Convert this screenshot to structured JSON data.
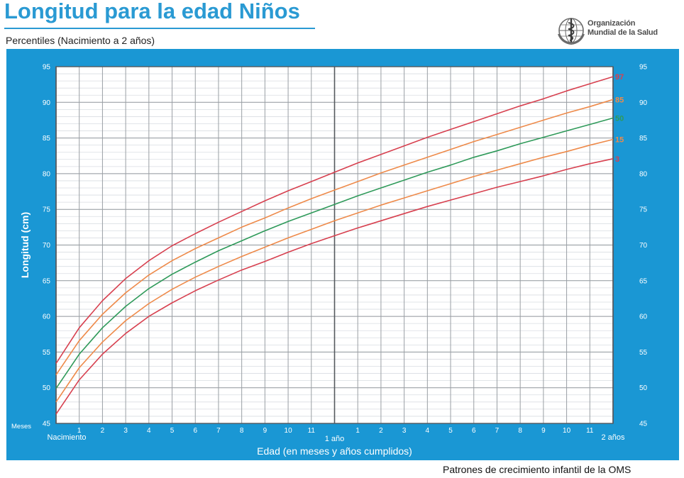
{
  "title": "Longitud para la edad Niños",
  "subtitle": "Percentiles (Nacimiento a 2 años)",
  "logo": {
    "line1": "Organización",
    "line2": "Mundial de la Salud",
    "icon": "who-emblem-icon"
  },
  "footer": "Patrones de crecimiento infantil de la OMS",
  "colors": {
    "panel": "#1a97d4",
    "p97": "#d7404f",
    "p85": "#ee8a4a",
    "p50": "#2f9a5a",
    "p15": "#ee8a4a",
    "p3": "#d7404f"
  },
  "chart_data": {
    "type": "line",
    "ylabel": "Longitud (cm)",
    "xlabel": "Edad (en meses y años cumplidos)",
    "x_unit_label": "Meses",
    "xlim": [
      0,
      24
    ],
    "ylim": [
      45,
      95
    ],
    "y_ticks": [
      45,
      50,
      55,
      60,
      65,
      70,
      75,
      80,
      85,
      90,
      95
    ],
    "x_ticks": [
      {
        "x": 0,
        "label": ""
      },
      {
        "x": 1,
        "label": "1"
      },
      {
        "x": 2,
        "label": "2"
      },
      {
        "x": 3,
        "label": "3"
      },
      {
        "x": 4,
        "label": "4"
      },
      {
        "x": 5,
        "label": "5"
      },
      {
        "x": 6,
        "label": "6"
      },
      {
        "x": 7,
        "label": "7"
      },
      {
        "x": 8,
        "label": "8"
      },
      {
        "x": 9,
        "label": "9"
      },
      {
        "x": 10,
        "label": "10"
      },
      {
        "x": 11,
        "label": "11"
      },
      {
        "x": 12,
        "label": ""
      },
      {
        "x": 13,
        "label": "1"
      },
      {
        "x": 14,
        "label": "2"
      },
      {
        "x": 15,
        "label": "3"
      },
      {
        "x": 16,
        "label": "4"
      },
      {
        "x": 17,
        "label": "5"
      },
      {
        "x": 18,
        "label": "6"
      },
      {
        "x": 19,
        "label": "7"
      },
      {
        "x": 20,
        "label": "8"
      },
      {
        "x": 21,
        "label": "9"
      },
      {
        "x": 22,
        "label": "10"
      },
      {
        "x": 23,
        "label": "11"
      },
      {
        "x": 24,
        "label": ""
      }
    ],
    "milestones": [
      {
        "x": 0,
        "label": "Nacimiento"
      },
      {
        "x": 12,
        "label": "1 año"
      },
      {
        "x": 24,
        "label": "2 años"
      }
    ],
    "grid": true,
    "x": [
      0,
      1,
      2,
      3,
      4,
      5,
      6,
      7,
      8,
      9,
      10,
      11,
      12,
      13,
      14,
      15,
      16,
      17,
      18,
      19,
      20,
      21,
      22,
      23,
      24
    ],
    "series": [
      {
        "name": "97",
        "color": "#d7404f",
        "values": [
          53.4,
          58.4,
          62.2,
          65.3,
          67.8,
          69.9,
          71.6,
          73.2,
          74.7,
          76.2,
          77.6,
          78.9,
          80.2,
          81.5,
          82.7,
          83.9,
          85.1,
          86.2,
          87.3,
          88.4,
          89.5,
          90.5,
          91.6,
          92.6,
          93.6
        ]
      },
      {
        "name": "85",
        "color": "#ee8a4a",
        "values": [
          51.8,
          56.6,
          60.3,
          63.3,
          65.8,
          67.8,
          69.5,
          71.0,
          72.5,
          73.8,
          75.2,
          76.5,
          77.7,
          78.9,
          80.1,
          81.2,
          82.3,
          83.4,
          84.5,
          85.5,
          86.5,
          87.5,
          88.5,
          89.4,
          90.4
        ]
      },
      {
        "name": "50",
        "color": "#2f9a5a",
        "values": [
          49.9,
          54.7,
          58.4,
          61.4,
          63.9,
          65.9,
          67.6,
          69.2,
          70.6,
          72.0,
          73.3,
          74.5,
          75.7,
          76.9,
          78.0,
          79.1,
          80.2,
          81.2,
          82.3,
          83.2,
          84.2,
          85.1,
          86.0,
          86.9,
          87.8
        ]
      },
      {
        "name": "15",
        "color": "#ee8a4a",
        "values": [
          48.0,
          52.8,
          56.4,
          59.4,
          61.8,
          63.8,
          65.5,
          67.0,
          68.4,
          69.7,
          71.0,
          72.2,
          73.4,
          74.5,
          75.6,
          76.6,
          77.6,
          78.6,
          79.6,
          80.5,
          81.4,
          82.3,
          83.1,
          84.0,
          84.8
        ]
      },
      {
        "name": "3",
        "color": "#d7404f",
        "values": [
          46.3,
          51.1,
          54.7,
          57.6,
          60.0,
          61.9,
          63.6,
          65.1,
          66.5,
          67.7,
          69.0,
          70.2,
          71.3,
          72.4,
          73.4,
          74.4,
          75.4,
          76.3,
          77.2,
          78.1,
          78.9,
          79.7,
          80.6,
          81.4,
          82.1
        ]
      }
    ]
  }
}
